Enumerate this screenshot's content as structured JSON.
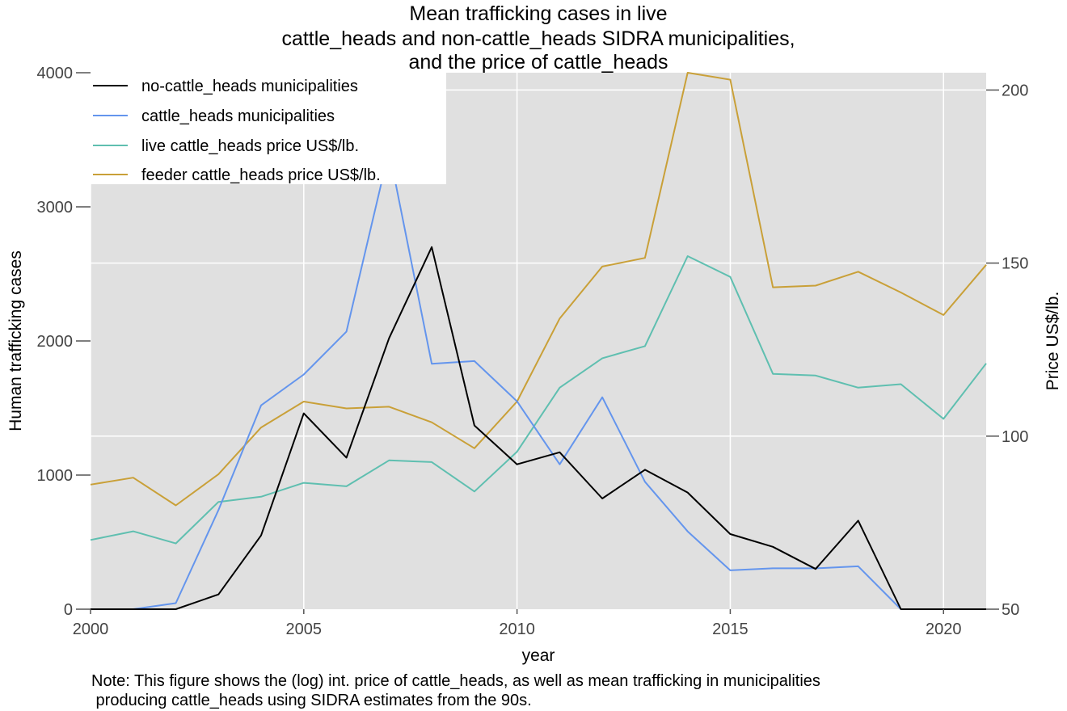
{
  "chart_data": {
    "type": "line",
    "title_lines": [
      "Mean trafficking cases in live",
      "cattle_heads and non-cattle_heads SIDRA municipalities,",
      "and the price of cattle_heads"
    ],
    "xlabel": "year",
    "ylabel_left": "Human trafficking cases",
    "ylabel_right": "Price US$/lb.",
    "xlim": [
      2000,
      2021
    ],
    "ylim_left": [
      0,
      4000
    ],
    "ylim_right": [
      50,
      205
    ],
    "x_ticks": [
      2000,
      2005,
      2010,
      2015,
      2020
    ],
    "y_ticks_left": [
      0,
      1000,
      2000,
      3000,
      4000
    ],
    "y_ticks_right": [
      50,
      100,
      150,
      200
    ],
    "x_tick_labels": [
      "2000",
      "2005",
      "2010",
      "2015",
      "2020"
    ],
    "y_tick_labels_left": [
      "0",
      "1000",
      "2000",
      "3000",
      "4000"
    ],
    "y_tick_labels_right": [
      "50",
      "100",
      "150",
      "200"
    ],
    "grid": true,
    "legend_position": "top-left",
    "x": [
      2000,
      2001,
      2002,
      2003,
      2004,
      2005,
      2006,
      2007,
      2008,
      2009,
      2010,
      2011,
      2012,
      2013,
      2014,
      2015,
      2016,
      2017,
      2018,
      2019,
      2020,
      2021
    ],
    "series": [
      {
        "name": "no-cattle_heads municipalities",
        "axis": "left",
        "color": "#000000",
        "values": [
          0,
          0,
          0,
          110,
          550,
          1460,
          1130,
          2020,
          2700,
          1370,
          1080,
          1170,
          825,
          1040,
          870,
          560,
          465,
          300,
          660,
          0,
          0,
          0
        ]
      },
      {
        "name": "cattle_heads municipalities",
        "axis": "left",
        "color": "#6495ED",
        "values": [
          0,
          0,
          45,
          740,
          1520,
          1750,
          2070,
          3420,
          1830,
          1850,
          1550,
          1080,
          1580,
          950,
          580,
          290,
          305,
          305,
          320,
          0,
          0,
          0
        ]
      },
      {
        "name": "live cattle_heads price US$/lb.",
        "axis": "right",
        "color": "#5FBFB0",
        "values": [
          70,
          72.5,
          69,
          81,
          82.5,
          86.5,
          85.5,
          93,
          92.5,
          84,
          95.5,
          114,
          122.5,
          126,
          152,
          146,
          118,
          117.5,
          114,
          115,
          105,
          121
        ]
      },
      {
        "name": "feeder cattle_heads price US$/lb.",
        "axis": "right",
        "color": "#C9A038",
        "values": [
          86,
          88,
          80,
          89,
          102.5,
          110,
          108,
          108.5,
          104,
          96.5,
          110,
          134,
          149,
          151.5,
          205,
          203,
          143,
          143.5,
          147.5,
          141.5,
          135,
          149.5
        ]
      }
    ],
    "note_lines": [
      "Note: This figure shows the (log) int. price of cattle_heads, as well as mean trafficking in municipalities",
      " producing cattle_heads using SIDRA estimates from the 90s."
    ]
  }
}
